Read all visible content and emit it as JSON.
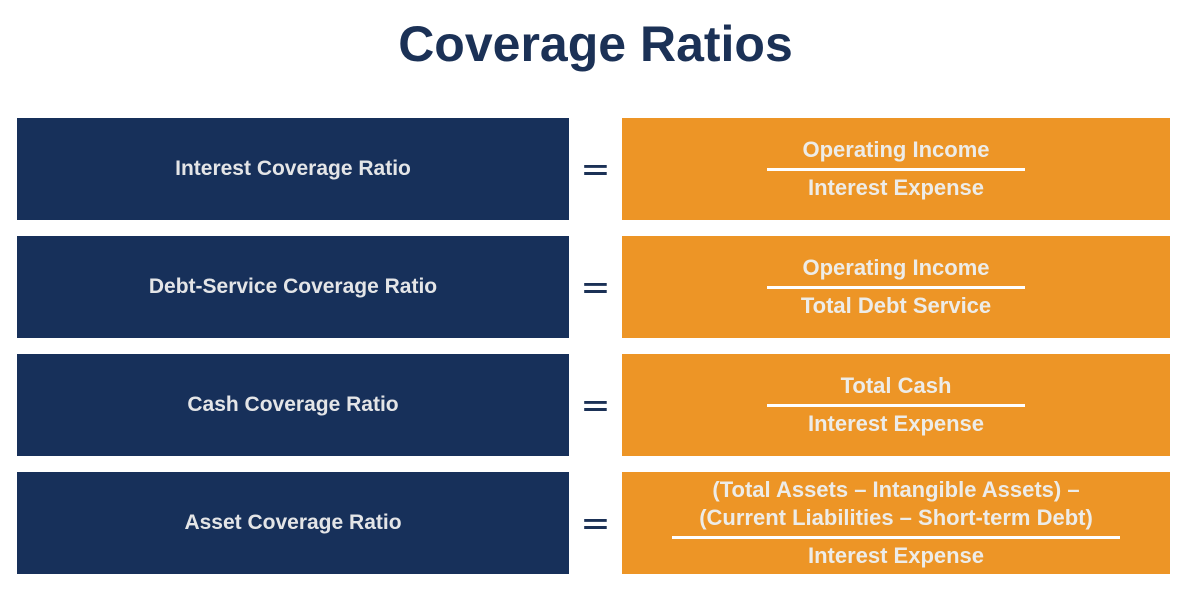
{
  "title": "Coverage Ratios",
  "equals_sign": "=",
  "colors": {
    "navy": "#17305A",
    "orange": "#ED9526",
    "title_navy": "#1B3156",
    "label_text": "#E4E5E7",
    "formula_text": "#EDECE8",
    "fraction_line": "#FFFFFF"
  },
  "rows": [
    {
      "label": "Interest Coverage Ratio",
      "numerator": "Operating Income",
      "denominator": "Interest Expense"
    },
    {
      "label": "Debt-Service Coverage Ratio",
      "numerator": "Operating Income",
      "denominator": "Total Debt Service"
    },
    {
      "label": "Cash Coverage Ratio",
      "numerator": "Total Cash",
      "denominator": "Interest Expense"
    },
    {
      "label": "Asset Coverage Ratio",
      "numerator_line1": "(Total Assets – Intangible Assets) –",
      "numerator_line2": "(Current Liabilities – Short-term Debt)",
      "denominator": "Interest Expense"
    }
  ]
}
